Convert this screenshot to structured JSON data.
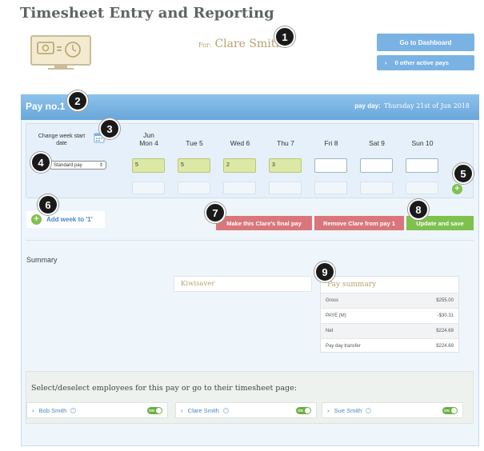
{
  "page": {
    "title": "Timesheet Entry and Reporting"
  },
  "employee": {
    "for_prefix": "For:",
    "name": "Clare Smith"
  },
  "nav": {
    "dashboard_label": "Go to Dashboard",
    "other_pays_label": "0 other active pays",
    "other_pays_chevron": "›"
  },
  "pay": {
    "title": "Pay no.1",
    "payday_label": "pay day:",
    "payday_value": "Thursday 21st of Jun 2018"
  },
  "week": {
    "change_week_label": "Change week start date",
    "pay_type": "Standard pay",
    "days": [
      {
        "line1": "Jun",
        "line2": "Mon 4",
        "hours": "5"
      },
      {
        "line1": "",
        "line2": "Tue 5",
        "hours": "5"
      },
      {
        "line1": "",
        "line2": "Wed 6",
        "hours": "2"
      },
      {
        "line1": "",
        "line2": "Thu 7",
        "hours": "3"
      },
      {
        "line1": "",
        "line2": "Fri 8",
        "hours": ""
      },
      {
        "line1": "",
        "line2": "Sat 9",
        "hours": ""
      },
      {
        "line1": "",
        "line2": "Sun 10",
        "hours": ""
      }
    ]
  },
  "actions": {
    "add_week_label": "Add week to '1'",
    "final_pay_label": "Make this Clare's final pay",
    "remove_label": "Remove Clare from pay 1",
    "update_label": "Update and save"
  },
  "summary": {
    "title": "Summary",
    "kiwisaver_label": "Kiwisaver",
    "pay_summary_title": "Pay summary",
    "rows": [
      {
        "label": "Gross",
        "value": "$255.00"
      },
      {
        "label": "PAYE (M)",
        "value": "-$30.31"
      },
      {
        "label": "Net",
        "value": "$224.69"
      },
      {
        "label": "Pay day transfer",
        "value": "$224.69"
      }
    ]
  },
  "employees_section": {
    "title": "Select/deselect employees for this pay or go to their timesheet page:",
    "employees": [
      {
        "name": "Bob Smith",
        "toggle": "ON"
      },
      {
        "name": "Clare Smith",
        "toggle": "ON"
      },
      {
        "name": "Sue Smith",
        "toggle": "ON"
      }
    ]
  },
  "annotations": [
    "1",
    "2",
    "3",
    "4",
    "5",
    "6",
    "7",
    "8",
    "9"
  ],
  "colors": {
    "header_blue": "#7ab2e3",
    "accent_green": "#7ec14d",
    "danger_red": "#d9767a",
    "gold_text": "#b5a36a"
  }
}
